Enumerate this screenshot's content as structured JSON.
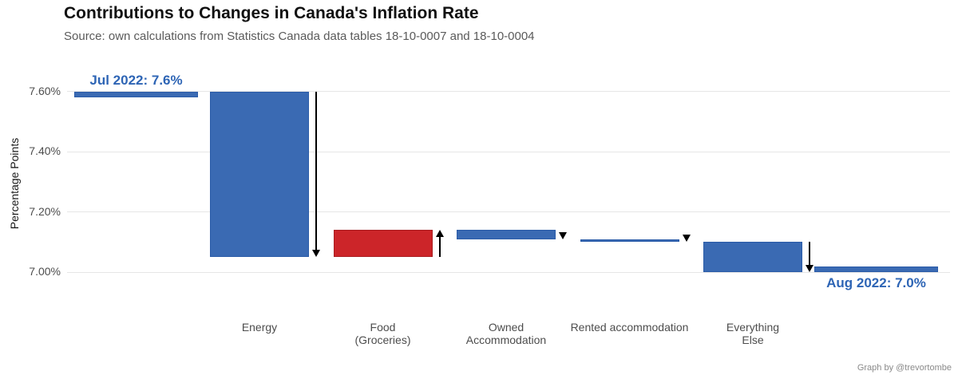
{
  "header": {
    "title": "Contributions to Changes in Canada's Inflation Rate",
    "subtitle": "Source: own calculations from Statistics Canada data tables 18-10-0007 and 18-10-0004"
  },
  "footer": {
    "credit": "Graph by @trevortombe"
  },
  "colors": {
    "blue": "#3a6ab3",
    "blue_border": "#2b5ca8",
    "red": "#cc2529",
    "red_border": "#a91d21",
    "annotation_blue": "#2e65b5",
    "gridline": "#e6e6e6",
    "axis_text": "#4d4d4d",
    "arrow": "#000000"
  },
  "chart_data": {
    "type": "waterfall",
    "title": "Contributions to Changes in Canada's Inflation Rate",
    "subtitle": "Source: own calculations from Statistics Canada data tables 18-10-0007 and 18-10-0004",
    "ylabel": "Percentage Points",
    "ylim": [
      6.95,
      7.67
    ],
    "grid": "horizontal-major",
    "legend": "none",
    "yticks": [
      {
        "value": 7.6,
        "label": "7.60%"
      },
      {
        "value": 7.4,
        "label": "7.40%"
      },
      {
        "value": 7.2,
        "label": "7.20%"
      },
      {
        "value": 7.0,
        "label": "7.00%"
      }
    ],
    "columns": [
      {
        "id": "jul-2022",
        "type": "level",
        "value": 7.6,
        "align": "below",
        "color": "blue",
        "annotation": "Jul 2022: 7.6%",
        "annotation_pos": "above",
        "axis_label": []
      },
      {
        "id": "energy",
        "type": "delta",
        "from": 7.6,
        "to": 7.05,
        "change": -0.55,
        "color": "blue",
        "arrow": "down",
        "axis_label": [
          "Energy"
        ]
      },
      {
        "id": "food-groceries",
        "type": "delta",
        "from": 7.05,
        "to": 7.14,
        "change": 0.09,
        "color": "red",
        "arrow": "up",
        "axis_label": [
          "Food",
          "(Groceries)"
        ]
      },
      {
        "id": "owned-accommodation",
        "type": "delta",
        "from": 7.14,
        "to": 7.11,
        "change": -0.03,
        "color": "blue",
        "arrow": "down",
        "axis_label": [
          "Owned",
          "Accommodation"
        ]
      },
      {
        "id": "rented-accommodation",
        "type": "delta",
        "from": 7.11,
        "to": 7.1,
        "change": -0.01,
        "color": "blue",
        "arrow": "down",
        "axis_label": [
          "Rented accommodation"
        ]
      },
      {
        "id": "everything-else",
        "type": "delta",
        "from": 7.1,
        "to": 7.0,
        "change": -0.1,
        "color": "blue",
        "arrow": "down",
        "axis_label": [
          "Everything",
          "Else"
        ]
      },
      {
        "id": "aug-2022",
        "type": "level",
        "value": 7.0,
        "align": "above",
        "color": "blue",
        "annotation": "Aug 2022: 7.0%",
        "annotation_pos": "below",
        "axis_label": []
      }
    ]
  }
}
